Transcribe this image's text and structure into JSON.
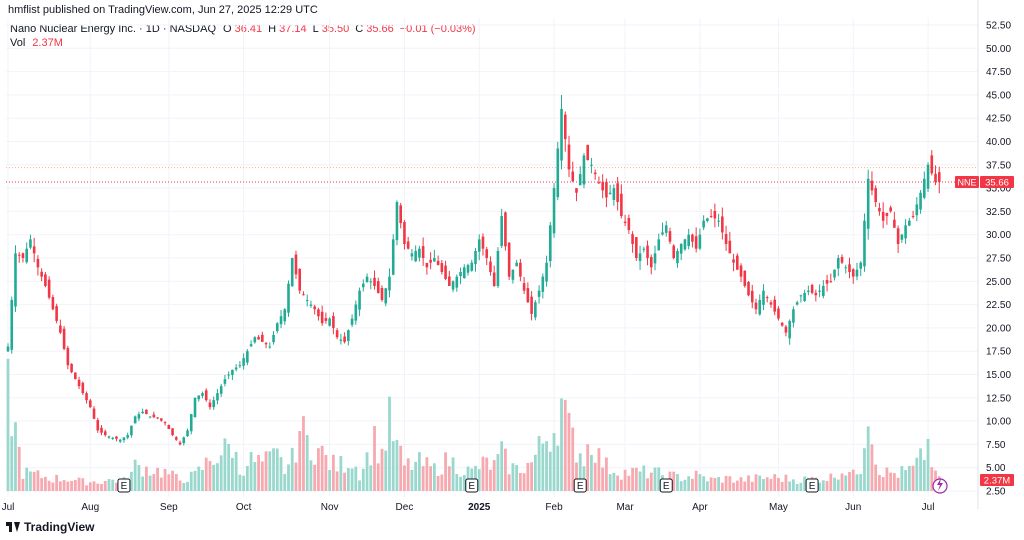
{
  "header": {
    "published": "hmflist published on TradingView.com, Jun 27, 2025 12:29 UTC"
  },
  "legend": {
    "title": "Nano Nuclear Energy Inc. · 1D · NASDAQ",
    "o_key": "O",
    "o_val": "36.41",
    "h_key": "H",
    "h_val": "37.14",
    "l_key": "L",
    "l_val": "35.50",
    "c_key": "C",
    "c_val": "35.66",
    "change": "−0.01 (−0.03%)",
    "vol_label": "Vol",
    "vol_val": "2.37M"
  },
  "footer": {
    "brand": "TradingView"
  },
  "colors": {
    "up": "#22ab94",
    "down": "#f23645",
    "vol_up": "#9ad8ce",
    "vol_down": "#f7a9b0",
    "grid": "#f0f3fa"
  },
  "chart_data": {
    "type": "candlestick",
    "symbol": "NNE",
    "last_price_label": "35.66",
    "volume_label": "2.37M",
    "ylim": [
      2.5,
      52.5
    ],
    "y_ticks": [
      "52.50",
      "50.00",
      "47.50",
      "45.00",
      "42.50",
      "40.00",
      "37.50",
      "35.00",
      "32.50",
      "30.00",
      "27.50",
      "25.00",
      "22.50",
      "20.00",
      "17.50",
      "15.00",
      "12.50",
      "10.00",
      "7.50",
      "5.00",
      "2.50"
    ],
    "x_ticks": [
      {
        "label": "Jul",
        "i": 0
      },
      {
        "label": "Aug",
        "i": 22
      },
      {
        "label": "Sep",
        "i": 43
      },
      {
        "label": "Oct",
        "i": 63
      },
      {
        "label": "Nov",
        "i": 86
      },
      {
        "label": "Dec",
        "i": 106
      },
      {
        "label": "2025",
        "i": 126
      },
      {
        "label": "Feb",
        "i": 146
      },
      {
        "label": "Mar",
        "i": 165
      },
      {
        "label": "Apr",
        "i": 185
      },
      {
        "label": "May",
        "i": 206
      },
      {
        "label": "Jun",
        "i": 226
      },
      {
        "label": "Jul",
        "i": 246
      }
    ],
    "event_markers": [
      {
        "label": "E",
        "i": 31
      },
      {
        "label": "E",
        "i": 124
      },
      {
        "label": "E",
        "i": 153
      },
      {
        "label": "E",
        "i": 176
      },
      {
        "label": "E",
        "i": 215
      }
    ],
    "price_lines": [
      37.2,
      35.66
    ],
    "anchors": [
      [
        0,
        18.0
      ],
      [
        2,
        28.0
      ],
      [
        4,
        27.5
      ],
      [
        6,
        29.5
      ],
      [
        8,
        26.5
      ],
      [
        10,
        24.5
      ],
      [
        12,
        22.0
      ],
      [
        14,
        19.5
      ],
      [
        16,
        16.0
      ],
      [
        18,
        14.5
      ],
      [
        20,
        13.0
      ],
      [
        22,
        11.5
      ],
      [
        24,
        9.0
      ],
      [
        26,
        8.5
      ],
      [
        28,
        8.2
      ],
      [
        30,
        8.0
      ],
      [
        32,
        8.5
      ],
      [
        34,
        10.5
      ],
      [
        36,
        11.0
      ],
      [
        38,
        10.5
      ],
      [
        40,
        10.3
      ],
      [
        42,
        9.8
      ],
      [
        44,
        8.5
      ],
      [
        46,
        7.5
      ],
      [
        48,
        9.0
      ],
      [
        50,
        12.5
      ],
      [
        52,
        13.0
      ],
      [
        54,
        11.5
      ],
      [
        56,
        13.0
      ],
      [
        58,
        14.5
      ],
      [
        60,
        15.5
      ],
      [
        62,
        16.0
      ],
      [
        64,
        17.5
      ],
      [
        66,
        19.0
      ],
      [
        68,
        18.5
      ],
      [
        70,
        18.0
      ],
      [
        72,
        20.5
      ],
      [
        74,
        22.0
      ],
      [
        76,
        27.5
      ],
      [
        78,
        24.0
      ],
      [
        80,
        23.0
      ],
      [
        82,
        22.0
      ],
      [
        84,
        20.5
      ],
      [
        86,
        21.0
      ],
      [
        88,
        19.0
      ],
      [
        90,
        18.5
      ],
      [
        92,
        21.0
      ],
      [
        94,
        24.0
      ],
      [
        96,
        25.5
      ],
      [
        98,
        24.5
      ],
      [
        100,
        23.0
      ],
      [
        102,
        25.5
      ],
      [
        104,
        33.5
      ],
      [
        106,
        29.0
      ],
      [
        108,
        28.0
      ],
      [
        110,
        28.5
      ],
      [
        112,
        26.5
      ],
      [
        114,
        27.5
      ],
      [
        116,
        26.0
      ],
      [
        118,
        24.5
      ],
      [
        120,
        25.5
      ],
      [
        122,
        26.5
      ],
      [
        124,
        27.0
      ],
      [
        126,
        29.5
      ],
      [
        128,
        27.5
      ],
      [
        130,
        24.5
      ],
      [
        132,
        32.0
      ],
      [
        134,
        25.5
      ],
      [
        136,
        27.0
      ],
      [
        138,
        24.0
      ],
      [
        140,
        21.5
      ],
      [
        142,
        24.0
      ],
      [
        144,
        27.0
      ],
      [
        146,
        35.0
      ],
      [
        148,
        43.5
      ],
      [
        150,
        37.0
      ],
      [
        152,
        34.5
      ],
      [
        154,
        38.5
      ],
      [
        156,
        37.5
      ],
      [
        158,
        35.5
      ],
      [
        160,
        34.0
      ],
      [
        162,
        35.0
      ],
      [
        164,
        32.0
      ],
      [
        166,
        30.5
      ],
      [
        168,
        27.5
      ],
      [
        170,
        28.5
      ],
      [
        172,
        26.5
      ],
      [
        174,
        29.5
      ],
      [
        176,
        31.0
      ],
      [
        178,
        27.5
      ],
      [
        180,
        29.0
      ],
      [
        182,
        30.0
      ],
      [
        184,
        28.5
      ],
      [
        186,
        31.5
      ],
      [
        188,
        32.0
      ],
      [
        190,
        31.5
      ],
      [
        192,
        29.0
      ],
      [
        194,
        27.0
      ],
      [
        196,
        25.5
      ],
      [
        198,
        23.5
      ],
      [
        200,
        22.0
      ],
      [
        202,
        24.0
      ],
      [
        204,
        22.5
      ],
      [
        206,
        21.0
      ],
      [
        208,
        19.5
      ],
      [
        210,
        22.0
      ],
      [
        212,
        23.5
      ],
      [
        214,
        24.0
      ],
      [
        216,
        23.5
      ],
      [
        218,
        24.5
      ],
      [
        220,
        25.0
      ],
      [
        222,
        27.5
      ],
      [
        224,
        26.5
      ],
      [
        226,
        25.5
      ],
      [
        228,
        27.0
      ],
      [
        230,
        36.0
      ],
      [
        232,
        33.5
      ],
      [
        234,
        31.5
      ],
      [
        236,
        32.5
      ],
      [
        238,
        29.0
      ],
      [
        240,
        31.0
      ],
      [
        242,
        32.0
      ],
      [
        244,
        34.5
      ],
      [
        246,
        37.5
      ],
      [
        248,
        35.66
      ]
    ],
    "volume_anchors_M": [
      [
        0,
        16.0
      ],
      [
        4,
        3.0
      ],
      [
        8,
        2.5
      ],
      [
        12,
        2.0
      ],
      [
        16,
        2.0
      ],
      [
        20,
        1.5
      ],
      [
        24,
        1.5
      ],
      [
        28,
        1.8
      ],
      [
        32,
        1.6
      ],
      [
        34,
        4.0
      ],
      [
        38,
        3.5
      ],
      [
        42,
        3.0
      ],
      [
        46,
        1.8
      ],
      [
        50,
        2.5
      ],
      [
        54,
        5.0
      ],
      [
        58,
        6.5
      ],
      [
        60,
        7.5
      ],
      [
        62,
        3.0
      ],
      [
        64,
        5.0
      ],
      [
        68,
        4.5
      ],
      [
        72,
        5.5
      ],
      [
        74,
        3.5
      ],
      [
        76,
        5.0
      ],
      [
        78,
        10.0
      ],
      [
        80,
        8.0
      ],
      [
        84,
        6.0
      ],
      [
        86,
        4.5
      ],
      [
        88,
        4.0
      ],
      [
        92,
        5.0
      ],
      [
        94,
        2.8
      ],
      [
        98,
        8.0
      ],
      [
        100,
        6.0
      ],
      [
        102,
        11.0
      ],
      [
        104,
        7.0
      ],
      [
        106,
        4.0
      ],
      [
        110,
        4.5
      ],
      [
        114,
        3.5
      ],
      [
        118,
        5.0
      ],
      [
        120,
        4.0
      ],
      [
        124,
        3.0
      ],
      [
        126,
        4.0
      ],
      [
        128,
        4.5
      ],
      [
        130,
        4.0
      ],
      [
        132,
        6.0
      ],
      [
        134,
        4.0
      ],
      [
        136,
        3.5
      ],
      [
        140,
        4.5
      ],
      [
        144,
        9.0
      ],
      [
        146,
        10.0
      ],
      [
        148,
        14.0
      ],
      [
        150,
        9.5
      ],
      [
        152,
        7.0
      ],
      [
        154,
        5.5
      ],
      [
        156,
        8.5
      ],
      [
        158,
        5.5
      ],
      [
        160,
        4.0
      ],
      [
        162,
        3.5
      ],
      [
        164,
        3.0
      ],
      [
        168,
        3.0
      ],
      [
        172,
        3.0
      ],
      [
        176,
        2.5
      ],
      [
        180,
        2.2
      ],
      [
        184,
        2.5
      ],
      [
        188,
        1.8
      ],
      [
        192,
        2.0
      ],
      [
        196,
        1.8
      ],
      [
        200,
        2.0
      ],
      [
        204,
        2.2
      ],
      [
        208,
        2.0
      ],
      [
        212,
        1.8
      ],
      [
        216,
        2.0
      ],
      [
        220,
        2.2
      ],
      [
        222,
        3.0
      ],
      [
        224,
        3.5
      ],
      [
        226,
        2.5
      ],
      [
        228,
        4.0
      ],
      [
        230,
        15.0
      ],
      [
        232,
        5.0
      ],
      [
        234,
        3.0
      ],
      [
        238,
        2.8
      ],
      [
        242,
        3.5
      ],
      [
        244,
        5.0
      ],
      [
        246,
        7.5
      ],
      [
        248,
        2.37
      ]
    ]
  }
}
